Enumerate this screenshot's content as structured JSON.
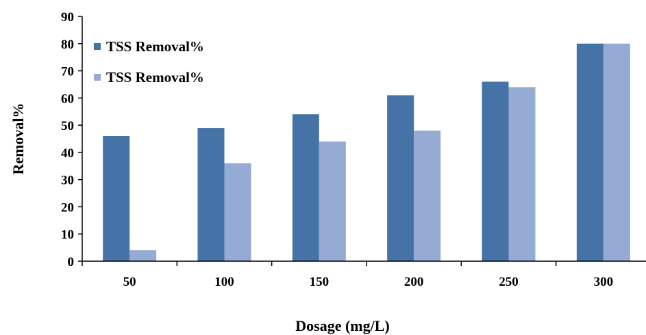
{
  "chart_data": {
    "type": "bar",
    "title": "",
    "xlabel": "Dosage (mg/L)",
    "ylabel": "Removal%",
    "categories": [
      "50",
      "100",
      "150",
      "200",
      "250",
      "300"
    ],
    "series": [
      {
        "name": "TSS Removal%",
        "color": "#4572A7",
        "values": [
          46,
          49,
          54,
          61,
          66,
          80
        ]
      },
      {
        "name": "TSS Removal%",
        "color": "#95ABD3",
        "values": [
          4,
          36,
          44,
          48,
          64,
          80
        ]
      }
    ],
    "ylim": [
      0,
      90
    ],
    "yticks": [
      0,
      10,
      20,
      30,
      40,
      50,
      60,
      70,
      80,
      90
    ],
    "grid": false,
    "legend_position": "top-left"
  }
}
